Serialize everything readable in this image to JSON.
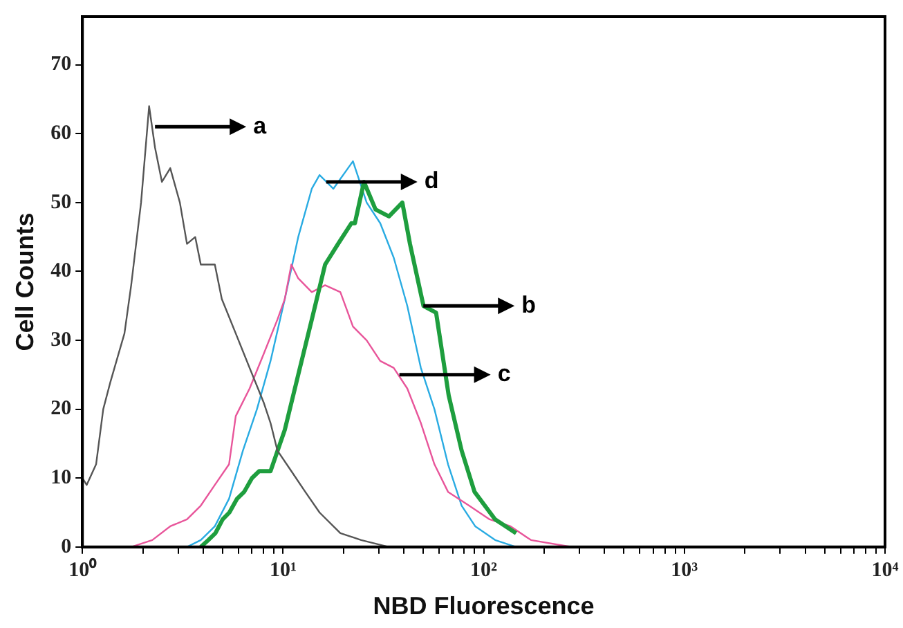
{
  "chart_data": {
    "type": "line",
    "xlabel": "NBD Fluorescence",
    "ylabel": "Cell Counts",
    "log": "x",
    "grid": false,
    "marker": "none",
    "line_style": "solid",
    "xlim": [
      1,
      10000
    ],
    "ylim": [
      0,
      77
    ],
    "xticks": [
      {
        "value": 1,
        "label": "10⁰"
      },
      {
        "value": 2,
        "label": null
      },
      {
        "value": 3,
        "label": null
      },
      {
        "value": 4,
        "label": null
      },
      {
        "value": 5,
        "label": null
      },
      {
        "value": 6,
        "label": null
      },
      {
        "value": 7,
        "label": null
      },
      {
        "value": 8,
        "label": null
      },
      {
        "value": 9,
        "label": null
      },
      {
        "value": 10,
        "label": "10¹"
      },
      {
        "value": 20,
        "label": null
      },
      {
        "value": 30,
        "label": null
      },
      {
        "value": 40,
        "label": null
      },
      {
        "value": 50,
        "label": null
      },
      {
        "value": 60,
        "label": null
      },
      {
        "value": 70,
        "label": null
      },
      {
        "value": 80,
        "label": null
      },
      {
        "value": 90,
        "label": null
      },
      {
        "value": 100,
        "label": "10²"
      },
      {
        "value": 200,
        "label": null
      },
      {
        "value": 300,
        "label": null
      },
      {
        "value": 400,
        "label": null
      },
      {
        "value": 500,
        "label": null
      },
      {
        "value": 600,
        "label": null
      },
      {
        "value": 700,
        "label": null
      },
      {
        "value": 800,
        "label": null
      },
      {
        "value": 900,
        "label": null
      },
      {
        "value": 1000,
        "label": "10³"
      },
      {
        "value": 2000,
        "label": null
      },
      {
        "value": 3000,
        "label": null
      },
      {
        "value": 4000,
        "label": null
      },
      {
        "value": 5000,
        "label": null
      },
      {
        "value": 6000,
        "label": null
      },
      {
        "value": 7000,
        "label": null
      },
      {
        "value": 8000,
        "label": null
      },
      {
        "value": 9000,
        "label": null
      },
      {
        "value": 10000,
        "label": "10⁴"
      }
    ],
    "yticks": [
      0,
      10,
      20,
      30,
      40,
      50,
      60,
      70
    ],
    "series": [
      {
        "color": "#555555",
        "x": [
          1.0,
          1.05,
          1.17,
          1.27,
          1.38,
          1.62,
          1.75,
          1.96,
          2.15,
          2.3,
          2.49,
          2.74,
          3.06,
          3.32,
          3.65,
          3.89,
          4.57,
          4.95,
          5.81,
          6.81,
          8.0,
          8.66,
          9.37,
          11.0,
          12.9,
          15.2,
          19.3,
          24.5,
          33.7
        ],
        "values": [
          10,
          9,
          12,
          20,
          24,
          31,
          38,
          50,
          64,
          58,
          53,
          55,
          50,
          44,
          45,
          41,
          41,
          36,
          31,
          26,
          21,
          18,
          14,
          11,
          8,
          5,
          2,
          1,
          0
        ]
      },
      {
        "color": "#1e9e3e",
        "x": [
          3.89,
          4.24,
          4.6,
          5.0,
          5.4,
          5.9,
          6.4,
          7.0,
          7.6,
          8.66,
          10.2,
          11.9,
          13.9,
          16.2,
          18.8,
          21.9,
          22.8,
          25.3,
          28.9,
          33.7,
          39.3,
          42.9,
          50.1,
          57.9,
          66.9,
          77.6,
          90.0,
          114,
          145
        ],
        "values": [
          0,
          1,
          2,
          4,
          5,
          7,
          8,
          10,
          11,
          11,
          17,
          25,
          33,
          41,
          44,
          47,
          47,
          53,
          49,
          48,
          50,
          44,
          35,
          34,
          22,
          14,
          8,
          4,
          2
        ]
      },
      {
        "color": "#e8559a",
        "x": [
          1.75,
          2.23,
          2.74,
          3.32,
          3.89,
          4.57,
          5.38,
          5.81,
          6.81,
          8.0,
          9.37,
          10.2,
          11.0,
          11.9,
          13.9,
          16.2,
          19.3,
          22.3,
          26.1,
          30.5,
          35.6,
          41.6,
          48.6,
          56.8,
          66.4,
          84.5,
          107,
          136,
          172,
          273
        ],
        "values": [
          0,
          1,
          3,
          4,
          6,
          9,
          12,
          19,
          23,
          28,
          33,
          36,
          41,
          39,
          37,
          38,
          37,
          32,
          30,
          27,
          26,
          23,
          18,
          12,
          8,
          6,
          4,
          3,
          1,
          0
        ]
      },
      {
        "color": "#29abe2",
        "x": [
          3.32,
          3.89,
          4.57,
          5.38,
          6.31,
          7.41,
          8.66,
          10.2,
          11.9,
          13.9,
          15.2,
          17.8,
          22.3,
          26.1,
          30.5,
          35.6,
          41.6,
          48.6,
          56.8,
          66.4,
          77.6,
          90.7,
          114,
          145
        ],
        "values": [
          0,
          1,
          3,
          7,
          14,
          20,
          27,
          36,
          45,
          52,
          54,
          52,
          56,
          50,
          47,
          42,
          35,
          26,
          20,
          12,
          6,
          3,
          1,
          0
        ]
      }
    ],
    "annotations": [
      {
        "text": "a",
        "x": 2.3,
        "y": 61
      },
      {
        "text": "d",
        "x": 16.4,
        "y": 53
      },
      {
        "text": "b",
        "x": 50,
        "y": 35
      },
      {
        "text": "c",
        "x": 38,
        "y": 25
      }
    ]
  }
}
